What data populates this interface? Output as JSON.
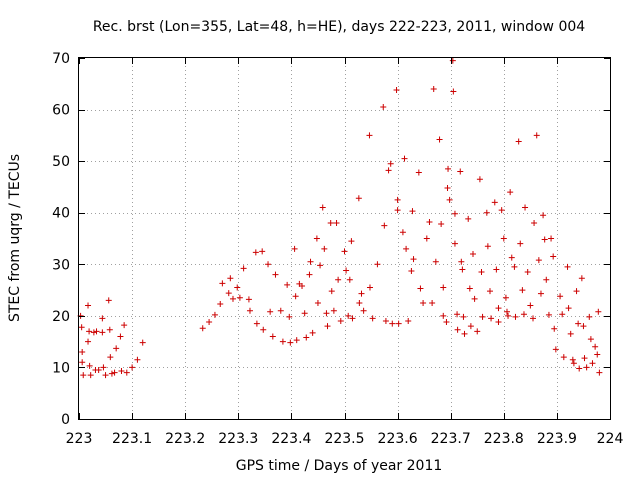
{
  "chart_data": {
    "type": "scatter",
    "title": "Rec. brst (Lon=355, Lat=48, h=HE), days 222-223, 2011, window 004",
    "xlabel": "GPS time / Days of year 2011",
    "ylabel": "STEC from uqrg / TECUs",
    "xlim": [
      223,
      224
    ],
    "ylim": [
      0,
      70
    ],
    "xticks": [
      223,
      223.1,
      223.2,
      223.3,
      223.4,
      223.5,
      223.6,
      223.7,
      223.8,
      223.9,
      224
    ],
    "xtick_labels": [
      "223",
      "223.1",
      "223.2",
      "223.3",
      "223.4",
      "223.5",
      "223.6",
      "223.7",
      "223.8",
      "223.9",
      "224"
    ],
    "yticks": [
      0,
      10,
      20,
      30,
      40,
      50,
      60,
      70
    ],
    "ytick_labels": [
      "0",
      "10",
      "20",
      "30",
      "40",
      "50",
      "60",
      "70"
    ],
    "grid": true,
    "marker": "+",
    "color": "#cc0000",
    "series": [
      {
        "name": "STEC",
        "points": [
          [
            223.003,
            20.0
          ],
          [
            223.005,
            17.8
          ],
          [
            223.006,
            13.0
          ],
          [
            223.006,
            11.0
          ],
          [
            223.008,
            8.5
          ],
          [
            223.017,
            22.0
          ],
          [
            223.017,
            15.0
          ],
          [
            223.019,
            17.0
          ],
          [
            223.02,
            10.3
          ],
          [
            223.022,
            8.5
          ],
          [
            223.028,
            16.8
          ],
          [
            223.031,
            9.5
          ],
          [
            223.033,
            17.0
          ],
          [
            223.037,
            9.5
          ],
          [
            223.044,
            16.8
          ],
          [
            223.044,
            19.5
          ],
          [
            223.046,
            10.0
          ],
          [
            223.05,
            8.5
          ],
          [
            223.056,
            23.0
          ],
          [
            223.058,
            17.3
          ],
          [
            223.059,
            12.0
          ],
          [
            223.062,
            8.8
          ],
          [
            223.067,
            9.0
          ],
          [
            223.07,
            13.7
          ],
          [
            223.078,
            16.0
          ],
          [
            223.08,
            9.3
          ],
          [
            223.085,
            18.2
          ],
          [
            223.09,
            9.0
          ],
          [
            223.1,
            10.0
          ],
          [
            223.11,
            11.5
          ],
          [
            223.12,
            14.8
          ],
          [
            223.233,
            17.6
          ],
          [
            223.245,
            18.8
          ],
          [
            223.256,
            20.2
          ],
          [
            223.266,
            22.3
          ],
          [
            223.27,
            26.3
          ],
          [
            223.282,
            24.4
          ],
          [
            223.285,
            27.3
          ],
          [
            223.29,
            23.3
          ],
          [
            223.298,
            25.5
          ],
          [
            223.303,
            23.5
          ],
          [
            223.31,
            29.2
          ],
          [
            223.32,
            23.2
          ],
          [
            223.322,
            21.0
          ],
          [
            223.333,
            32.3
          ],
          [
            223.335,
            18.5
          ],
          [
            223.345,
            32.5
          ],
          [
            223.347,
            17.3
          ],
          [
            223.356,
            30.0
          ],
          [
            223.36,
            20.8
          ],
          [
            223.365,
            16.0
          ],
          [
            223.37,
            28.0
          ],
          [
            223.38,
            21.0
          ],
          [
            223.384,
            15.0
          ],
          [
            223.392,
            26.0
          ],
          [
            223.396,
            19.8
          ],
          [
            223.398,
            14.8
          ],
          [
            223.406,
            33.0
          ],
          [
            223.408,
            23.8
          ],
          [
            223.41,
            15.3
          ],
          [
            223.415,
            26.2
          ],
          [
            223.42,
            25.8
          ],
          [
            223.425,
            20.5
          ],
          [
            223.428,
            15.8
          ],
          [
            223.434,
            28.0
          ],
          [
            223.436,
            30.5
          ],
          [
            223.44,
            16.7
          ],
          [
            223.448,
            35.0
          ],
          [
            223.45,
            22.5
          ],
          [
            223.454,
            29.8
          ],
          [
            223.459,
            41.0
          ],
          [
            223.462,
            33.0
          ],
          [
            223.466,
            20.5
          ],
          [
            223.468,
            18.0
          ],
          [
            223.474,
            38.0
          ],
          [
            223.476,
            24.8
          ],
          [
            223.48,
            21.0
          ],
          [
            223.485,
            38.0
          ],
          [
            223.488,
            27.0
          ],
          [
            223.493,
            19.0
          ],
          [
            223.5,
            32.5
          ],
          [
            223.503,
            28.8
          ],
          [
            223.507,
            20.0
          ],
          [
            223.51,
            27.0
          ],
          [
            223.513,
            34.5
          ],
          [
            223.515,
            19.5
          ],
          [
            223.527,
            42.8
          ],
          [
            223.528,
            22.5
          ],
          [
            223.532,
            24.3
          ],
          [
            223.536,
            21.0
          ],
          [
            223.547,
            55.0
          ],
          [
            223.548,
            25.5
          ],
          [
            223.553,
            19.5
          ],
          [
            223.562,
            30.0
          ],
          [
            223.573,
            60.5
          ],
          [
            223.575,
            37.5
          ],
          [
            223.578,
            19.0
          ],
          [
            223.583,
            48.2
          ],
          [
            223.587,
            49.5
          ],
          [
            223.59,
            18.5
          ],
          [
            223.598,
            63.8
          ],
          [
            223.6,
            42.5
          ],
          [
            223.6,
            40.5
          ],
          [
            223.602,
            18.5
          ],
          [
            223.61,
            36.2
          ],
          [
            223.613,
            50.5
          ],
          [
            223.616,
            33.0
          ],
          [
            223.62,
            19.0
          ],
          [
            223.626,
            28.7
          ],
          [
            223.628,
            40.3
          ],
          [
            223.63,
            31.0
          ],
          [
            223.64,
            47.8
          ],
          [
            223.643,
            25.3
          ],
          [
            223.648,
            22.5
          ],
          [
            223.655,
            35.0
          ],
          [
            223.66,
            38.2
          ],
          [
            223.665,
            22.5
          ],
          [
            223.668,
            64.0
          ],
          [
            223.672,
            30.5
          ],
          [
            223.679,
            54.2
          ],
          [
            223.682,
            37.8
          ],
          [
            223.686,
            25.5
          ],
          [
            223.686,
            20.0
          ],
          [
            223.692,
            18.8
          ],
          [
            223.694,
            44.8
          ],
          [
            223.695,
            48.5
          ],
          [
            223.698,
            42.5
          ],
          [
            223.704,
            69.5
          ],
          [
            223.705,
            63.5
          ],
          [
            223.708,
            39.8
          ],
          [
            223.708,
            34.0
          ],
          [
            223.712,
            20.3
          ],
          [
            223.713,
            17.3
          ],
          [
            223.718,
            48.0
          ],
          [
            223.72,
            30.5
          ],
          [
            223.722,
            29.0
          ],
          [
            223.724,
            19.8
          ],
          [
            223.726,
            16.5
          ],
          [
            223.733,
            38.8
          ],
          [
            223.736,
            25.3
          ],
          [
            223.738,
            18.0
          ],
          [
            223.742,
            32.0
          ],
          [
            223.745,
            23.3
          ],
          [
            223.75,
            17.0
          ],
          [
            223.755,
            46.5
          ],
          [
            223.758,
            28.5
          ],
          [
            223.76,
            19.8
          ],
          [
            223.768,
            40.0
          ],
          [
            223.77,
            33.5
          ],
          [
            223.774,
            24.8
          ],
          [
            223.776,
            19.5
          ],
          [
            223.783,
            42.0
          ],
          [
            223.786,
            29.0
          ],
          [
            223.79,
            21.5
          ],
          [
            223.79,
            18.8
          ],
          [
            223.796,
            40.5
          ],
          [
            223.8,
            35.0
          ],
          [
            223.804,
            23.5
          ],
          [
            223.806,
            20.8
          ],
          [
            223.808,
            20.0
          ],
          [
            223.812,
            44.0
          ],
          [
            223.815,
            31.3
          ],
          [
            223.82,
            29.5
          ],
          [
            223.822,
            19.8
          ],
          [
            223.828,
            53.8
          ],
          [
            223.831,
            34.0
          ],
          [
            223.835,
            25.0
          ],
          [
            223.838,
            20.3
          ],
          [
            223.84,
            41.0
          ],
          [
            223.845,
            28.5
          ],
          [
            223.85,
            22.0
          ],
          [
            223.855,
            19.5
          ],
          [
            223.857,
            38.0
          ],
          [
            223.862,
            55.0
          ],
          [
            223.866,
            30.8
          ],
          [
            223.87,
            24.3
          ],
          [
            223.874,
            39.5
          ],
          [
            223.877,
            34.8
          ],
          [
            223.88,
            27.0
          ],
          [
            223.885,
            20.2
          ],
          [
            223.889,
            35.0
          ],
          [
            223.893,
            31.5
          ],
          [
            223.895,
            17.5
          ],
          [
            223.898,
            13.5
          ],
          [
            223.906,
            23.8
          ],
          [
            223.91,
            20.3
          ],
          [
            223.913,
            12.0
          ],
          [
            223.92,
            29.5
          ],
          [
            223.922,
            21.5
          ],
          [
            223.926,
            16.5
          ],
          [
            223.93,
            11.5
          ],
          [
            223.932,
            10.8
          ],
          [
            223.937,
            24.8
          ],
          [
            223.94,
            18.5
          ],
          [
            223.942,
            9.8
          ],
          [
            223.947,
            27.3
          ],
          [
            223.95,
            18.0
          ],
          [
            223.952,
            11.8
          ],
          [
            223.956,
            10.0
          ],
          [
            223.961,
            19.8
          ],
          [
            223.964,
            15.5
          ],
          [
            223.967,
            10.8
          ],
          [
            223.972,
            14.0
          ],
          [
            223.976,
            12.5
          ],
          [
            223.978,
            20.8
          ],
          [
            223.98,
            9.0
          ]
        ]
      }
    ]
  }
}
